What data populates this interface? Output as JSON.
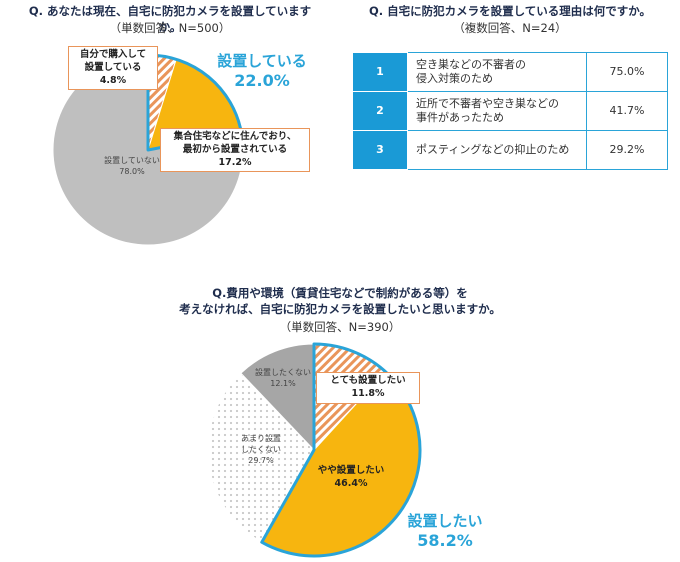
{
  "chart_data": [
    {
      "type": "pie",
      "title": "Q. あなたは現在、自宅に防犯カメラを設置していますか。",
      "subtitle": "（単数回答、N=500）",
      "categories": [
        "自分で購入して\n設置している",
        "集合住宅などに住んでおり、\n最初から設置されている",
        "設置していない"
      ],
      "values": [
        4.8,
        17.2,
        78.0
      ],
      "value_labels": [
        "4.8%",
        "17.2%",
        "78.0%"
      ],
      "colors": [
        "#e9955a",
        "#f7b50f",
        "#bfbfbf"
      ],
      "patterns": [
        "stripes",
        null,
        null
      ],
      "group": {
        "label": "設置している",
        "value": 22.0,
        "value_label": "22.0%",
        "color": "#2aa4d8"
      }
    },
    {
      "type": "pie",
      "title": "Q.費用や環境（賃貸住宅などで制約がある等）を\n考えなければ、自宅に防犯カメラを設置したいと思いますか。",
      "subtitle": "（単数回答、N=390）",
      "categories": [
        "とても設置したい",
        "やや設置したい",
        "あまり設置\nしたくない",
        "設置したくない"
      ],
      "values": [
        11.8,
        46.4,
        29.7,
        12.1
      ],
      "value_labels": [
        "11.8%",
        "46.4%",
        "29.7%",
        "12.1%"
      ],
      "colors": [
        "#e9955a",
        "#f7b50f",
        "#c8c8c8",
        "#a6a6a6"
      ],
      "patterns": [
        "stripes",
        null,
        "dots",
        null
      ],
      "group": {
        "label": "設置したい",
        "value": 58.2,
        "value_label": "58.2%",
        "color": "#2aa4d8"
      }
    }
  ],
  "table": {
    "title": "Q. 自宅に防犯カメラを設置している理由は何ですか。",
    "subtitle": "（複数回答、N=24）",
    "rows": [
      [
        "1",
        "空き巣などの不審者の\n侵入対策のため",
        "75.0%"
      ],
      [
        "2",
        "近所で不審者や空き巣などの\n事件があったため",
        "41.7%"
      ],
      [
        "3",
        "ポスティングなどの抑止のため",
        "29.2%"
      ]
    ]
  }
}
